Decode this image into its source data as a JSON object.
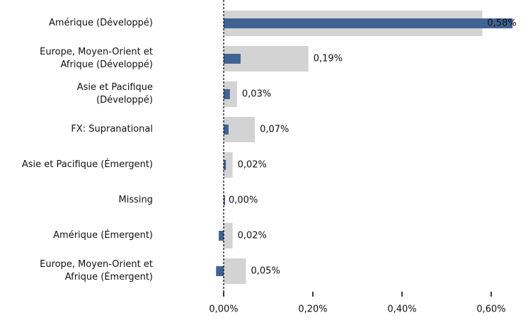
{
  "chart_data": {
    "type": "hbar",
    "categories": [
      "Amérique (Développé)",
      "Europe, Moyen-Orient et\nAfrique (Développé)",
      "Asie et Pacifique\n(Développé)",
      "FX: Supranational",
      "Asie et Pacifique (Émergent)",
      "Missing",
      "Amérique (Émergent)",
      "Europe, Moyen-Orient et\nAfrique (Émergent)"
    ],
    "series": [
      {
        "color": "#d3d3d3",
        "values": [
          0.58,
          0.19,
          0.03,
          0.07,
          0.02,
          0.0,
          0.02,
          0.05
        ],
        "value_labels": [
          "0,58%",
          "0,19%",
          "0,03%",
          "0,07%",
          "0,02%",
          "0,00%",
          "0,02%",
          "0,05%"
        ]
      },
      {
        "color": "#3f6392",
        "values": [
          0.648,
          0.038,
          0.014,
          0.011,
          0.005,
          0.003,
          -0.011,
          -0.017
        ]
      }
    ],
    "xlim": [
      -0.05,
      0.66
    ],
    "xticks": [
      {
        "value": 0,
        "label": "0,00%"
      },
      {
        "value": 0.2,
        "label": "0,20%"
      },
      {
        "value": 0.4,
        "label": "0,40%"
      },
      {
        "value": 0.6,
        "label": "0,60%"
      }
    ]
  }
}
